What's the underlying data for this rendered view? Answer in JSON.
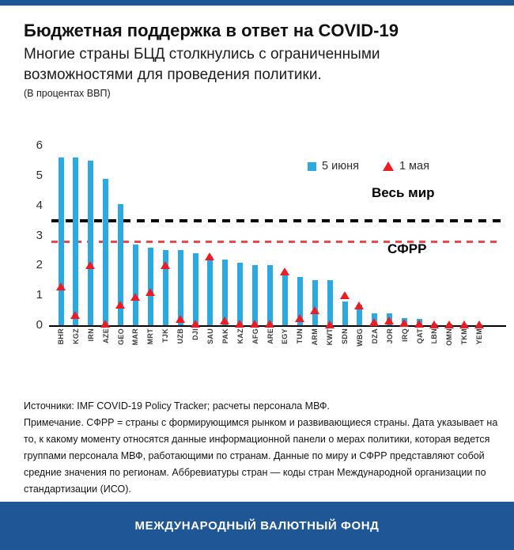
{
  "header": {
    "title": "Бюджетная поддержка в ответ на COVID-19",
    "subtitle": "Многие страны БЦД столкнулись с ограниченными возможностями для проведения политики.",
    "unit_note": "(В процентах ВВП)"
  },
  "chart_data": {
    "type": "bar",
    "title": "Бюджетная поддержка в ответ на COVID-19",
    "ylabel": "Проценты ВВП",
    "ylim": [
      0,
      6
    ],
    "yticks": [
      0,
      1,
      2,
      3,
      4,
      5,
      6
    ],
    "grid": false,
    "legend_position": "top-right",
    "categories": [
      "BHR",
      "KGZ",
      "IRN",
      "AZE",
      "GEO",
      "MAR",
      "MRT",
      "TJK",
      "UZB",
      "DJI",
      "SAU",
      "PAK",
      "KAZ",
      "AFG",
      "ARE",
      "EGY",
      "TUN",
      "ARM",
      "KWT",
      "SDN",
      "WBG",
      "DZA",
      "JOR",
      "IRQ",
      "QAT",
      "LBN",
      "OMN",
      "TKM",
      "YEM"
    ],
    "series": [
      {
        "name": "5 июня",
        "marker": "bar",
        "color": "#2da9e1",
        "values": [
          5.6,
          5.6,
          5.5,
          4.9,
          4.05,
          2.7,
          2.6,
          2.5,
          2.5,
          2.4,
          2.3,
          2.2,
          2.1,
          2.0,
          2.0,
          1.75,
          1.6,
          1.5,
          1.5,
          0.8,
          0.7,
          0.4,
          0.4,
          0.25,
          0.2,
          0.05,
          0.05,
          0.03,
          0.03
        ]
      },
      {
        "name": "1 мая",
        "marker": "triangle",
        "color": "#ed1c24",
        "values": [
          1.3,
          0.35,
          2.0,
          0.05,
          0.7,
          0.95,
          1.1,
          2.0,
          0.2,
          0.05,
          2.3,
          0.15,
          0.05,
          0.05,
          0.05,
          1.8,
          0.25,
          0.5,
          0.03,
          1.0,
          0.65,
          0.1,
          0.15,
          0.08,
          0.05,
          0.03,
          0.03,
          0.03,
          0.03
        ]
      }
    ],
    "reference_lines": [
      {
        "label": "Весь мир",
        "value": 3.5,
        "style": "long-dash",
        "color": "#000000"
      },
      {
        "label": "СФРР",
        "value": 2.8,
        "style": "dash",
        "color": "#e8494d"
      }
    ]
  },
  "footnotes": {
    "sources": "Источники: IMF COVID-19 Policy Tracker; расчеты персонала МВФ.",
    "note": "Примечание. СФРР = страны с формирующимся рынком и развивающиеся страны. Дата указывает на то, к какому моменту относятся данные информационной панели о мерах политики, которая ведется группами персонала МВФ, работающими по странам. Данные по миру и СФРР представляют собой средние значения по регионам. Аббревиатуры стран — коды стран Международной организации по стандартизации (ИСО)."
  },
  "banner": {
    "label": "МЕЖДУНАРОДНЫЙ ВАЛЮТНЫЙ ФОНД"
  },
  "colors": {
    "bar_blue": "#2da9e1",
    "marker_red": "#ed1c24",
    "world_line_black": "#000000",
    "emde_line_red": "#e8494d",
    "banner_blue": "#1f5796",
    "top_border_blue": "#1f5796"
  }
}
